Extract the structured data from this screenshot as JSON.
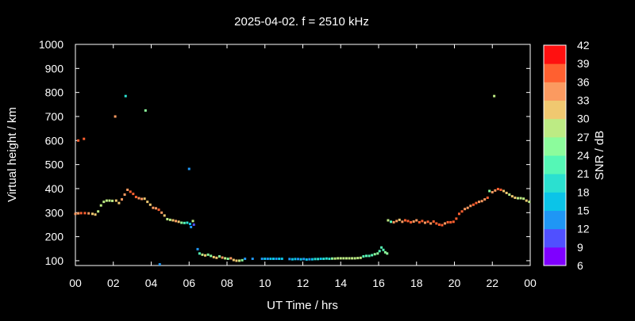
{
  "chart_data": {
    "type": "scatter",
    "title": "2025-04-02. f = 2510 kHz",
    "xlabel": "UT Time / hrs",
    "ylabel": "Virtual height / km",
    "colorbar_label": "SNR / dB",
    "xlim": [
      0,
      24
    ],
    "ylim": [
      80,
      1000
    ],
    "x_ticks": [
      "00",
      "02",
      "04",
      "06",
      "08",
      "10",
      "12",
      "14",
      "16",
      "18",
      "20",
      "22",
      "00"
    ],
    "y_ticks": [
      "100",
      "200",
      "300",
      "400",
      "500",
      "600",
      "700",
      "800",
      "900",
      "1000"
    ],
    "colorbar_ticks": [
      "6",
      "9",
      "12",
      "15",
      "18",
      "21",
      "24",
      "27",
      "30",
      "33",
      "36",
      "39",
      "42"
    ],
    "colorbar_range": [
      6,
      42
    ],
    "background": "#000000",
    "colorbar_colors": [
      "#7f00ff",
      "#5050ff",
      "#1f96f5",
      "#0bc4e8",
      "#2be0d0",
      "#55f7b6",
      "#8cfc9c",
      "#bdeb84",
      "#f0c870",
      "#fb9a60",
      "#ff6030",
      "#ff1010"
    ],
    "points": [
      {
        "x": 0.0,
        "y": 295,
        "snr": 33
      },
      {
        "x": 0.15,
        "y": 297,
        "snr": 35
      },
      {
        "x": 0.3,
        "y": 298,
        "snr": 36
      },
      {
        "x": 0.5,
        "y": 298,
        "snr": 37
      },
      {
        "x": 0.7,
        "y": 297,
        "snr": 33
      },
      {
        "x": 0.9,
        "y": 295,
        "snr": 31
      },
      {
        "x": 1.05,
        "y": 292,
        "snr": 30
      },
      {
        "x": 1.2,
        "y": 305,
        "snr": 29
      },
      {
        "x": 1.35,
        "y": 330,
        "snr": 29
      },
      {
        "x": 1.5,
        "y": 345,
        "snr": 28
      },
      {
        "x": 1.65,
        "y": 350,
        "snr": 28
      },
      {
        "x": 1.8,
        "y": 350,
        "snr": 29
      },
      {
        "x": 1.95,
        "y": 349,
        "snr": 29
      },
      {
        "x": 2.15,
        "y": 350,
        "snr": 30
      },
      {
        "x": 2.3,
        "y": 340,
        "snr": 31
      },
      {
        "x": 2.45,
        "y": 355,
        "snr": 33
      },
      {
        "x": 2.6,
        "y": 375,
        "snr": 34
      },
      {
        "x": 2.75,
        "y": 395,
        "snr": 35
      },
      {
        "x": 2.9,
        "y": 387,
        "snr": 36
      },
      {
        "x": 3.05,
        "y": 378,
        "snr": 37
      },
      {
        "x": 3.2,
        "y": 365,
        "snr": 38
      },
      {
        "x": 3.35,
        "y": 360,
        "snr": 34
      },
      {
        "x": 3.5,
        "y": 357,
        "snr": 33
      },
      {
        "x": 3.65,
        "y": 358,
        "snr": 31
      },
      {
        "x": 3.8,
        "y": 345,
        "snr": 30
      },
      {
        "x": 3.95,
        "y": 333,
        "snr": 32
      },
      {
        "x": 4.1,
        "y": 320,
        "snr": 34
      },
      {
        "x": 4.25,
        "y": 318,
        "snr": 35
      },
      {
        "x": 4.4,
        "y": 312,
        "snr": 36
      },
      {
        "x": 4.55,
        "y": 300,
        "snr": 33
      },
      {
        "x": 4.7,
        "y": 288,
        "snr": 30
      },
      {
        "x": 4.85,
        "y": 273,
        "snr": 29
      },
      {
        "x": 5.0,
        "y": 270,
        "snr": 28
      },
      {
        "x": 5.15,
        "y": 268,
        "snr": 30
      },
      {
        "x": 5.3,
        "y": 265,
        "snr": 33
      },
      {
        "x": 5.45,
        "y": 262,
        "snr": 31
      },
      {
        "x": 5.6,
        "y": 258,
        "snr": 25
      },
      {
        "x": 5.75,
        "y": 257,
        "snr": 22
      },
      {
        "x": 5.9,
        "y": 258,
        "snr": 19
      },
      {
        "x": 6.05,
        "y": 253,
        "snr": 15
      },
      {
        "x": 6.1,
        "y": 240,
        "snr": 14
      },
      {
        "x": 6.2,
        "y": 265,
        "snr": 28
      },
      {
        "x": 6.25,
        "y": 250,
        "snr": 11
      },
      {
        "x": 6.45,
        "y": 148,
        "snr": 12
      },
      {
        "x": 6.55,
        "y": 130,
        "snr": 22
      },
      {
        "x": 6.7,
        "y": 125,
        "snr": 29
      },
      {
        "x": 6.85,
        "y": 122,
        "snr": 30
      },
      {
        "x": 7.0,
        "y": 125,
        "snr": 24
      },
      {
        "x": 7.15,
        "y": 120,
        "snr": 26
      },
      {
        "x": 7.3,
        "y": 115,
        "snr": 31
      },
      {
        "x": 7.45,
        "y": 112,
        "snr": 30
      },
      {
        "x": 7.6,
        "y": 118,
        "snr": 24
      },
      {
        "x": 7.75,
        "y": 113,
        "snr": 33
      },
      {
        "x": 7.9,
        "y": 110,
        "snr": 29
      },
      {
        "x": 8.05,
        "y": 108,
        "snr": 26
      },
      {
        "x": 8.2,
        "y": 110,
        "snr": 33
      },
      {
        "x": 8.35,
        "y": 103,
        "snr": 31
      },
      {
        "x": 8.5,
        "y": 100,
        "snr": 30
      },
      {
        "x": 8.65,
        "y": 100,
        "snr": 28
      },
      {
        "x": 8.8,
        "y": 102,
        "snr": 26
      },
      {
        "x": 8.95,
        "y": 108,
        "snr": 14
      },
      {
        "x": 9.35,
        "y": 108,
        "snr": 12
      },
      {
        "x": 9.85,
        "y": 108,
        "snr": 13
      },
      {
        "x": 10.0,
        "y": 108,
        "snr": 15
      },
      {
        "x": 10.15,
        "y": 108,
        "snr": 14
      },
      {
        "x": 10.3,
        "y": 108,
        "snr": 16
      },
      {
        "x": 10.45,
        "y": 108,
        "snr": 15
      },
      {
        "x": 10.6,
        "y": 108,
        "snr": 14
      },
      {
        "x": 10.75,
        "y": 108,
        "snr": 17
      },
      {
        "x": 10.9,
        "y": 108,
        "snr": 15
      },
      {
        "x": 11.3,
        "y": 107,
        "snr": 14
      },
      {
        "x": 11.45,
        "y": 106,
        "snr": 16
      },
      {
        "x": 11.6,
        "y": 107,
        "snr": 15
      },
      {
        "x": 11.75,
        "y": 107,
        "snr": 13
      },
      {
        "x": 11.9,
        "y": 106,
        "snr": 15
      },
      {
        "x": 12.05,
        "y": 107,
        "snr": 14
      },
      {
        "x": 12.2,
        "y": 105,
        "snr": 16
      },
      {
        "x": 12.35,
        "y": 106,
        "snr": 13
      },
      {
        "x": 12.5,
        "y": 106,
        "snr": 15
      },
      {
        "x": 12.65,
        "y": 107,
        "snr": 18
      },
      {
        "x": 12.8,
        "y": 107,
        "snr": 20
      },
      {
        "x": 12.95,
        "y": 108,
        "snr": 16
      },
      {
        "x": 13.1,
        "y": 108,
        "snr": 19
      },
      {
        "x": 13.25,
        "y": 109,
        "snr": 18
      },
      {
        "x": 13.4,
        "y": 108,
        "snr": 20
      },
      {
        "x": 13.55,
        "y": 109,
        "snr": 24
      },
      {
        "x": 13.7,
        "y": 109,
        "snr": 27
      },
      {
        "x": 13.85,
        "y": 110,
        "snr": 28
      },
      {
        "x": 14.0,
        "y": 110,
        "snr": 29
      },
      {
        "x": 14.15,
        "y": 110,
        "snr": 28
      },
      {
        "x": 14.3,
        "y": 110,
        "snr": 27
      },
      {
        "x": 14.45,
        "y": 110,
        "snr": 28
      },
      {
        "x": 14.6,
        "y": 110,
        "snr": 29
      },
      {
        "x": 14.75,
        "y": 110,
        "snr": 28
      },
      {
        "x": 14.9,
        "y": 111,
        "snr": 27
      },
      {
        "x": 15.05,
        "y": 112,
        "snr": 28
      },
      {
        "x": 15.2,
        "y": 118,
        "snr": 22
      },
      {
        "x": 15.35,
        "y": 120,
        "snr": 21
      },
      {
        "x": 15.5,
        "y": 120,
        "snr": 22
      },
      {
        "x": 15.65,
        "y": 123,
        "snr": 23
      },
      {
        "x": 15.8,
        "y": 127,
        "snr": 24
      },
      {
        "x": 15.95,
        "y": 130,
        "snr": 26
      },
      {
        "x": 16.05,
        "y": 140,
        "snr": 23
      },
      {
        "x": 16.15,
        "y": 155,
        "snr": 22
      },
      {
        "x": 16.25,
        "y": 145,
        "snr": 21
      },
      {
        "x": 16.35,
        "y": 135,
        "snr": 24
      },
      {
        "x": 16.45,
        "y": 130,
        "snr": 26
      },
      {
        "x": 16.5,
        "y": 268,
        "snr": 28
      },
      {
        "x": 16.65,
        "y": 262,
        "snr": 23
      },
      {
        "x": 16.8,
        "y": 260,
        "snr": 33
      },
      {
        "x": 16.95,
        "y": 265,
        "snr": 35
      },
      {
        "x": 17.1,
        "y": 270,
        "snr": 31
      },
      {
        "x": 17.25,
        "y": 262,
        "snr": 33
      },
      {
        "x": 17.4,
        "y": 268,
        "snr": 36
      },
      {
        "x": 17.55,
        "y": 265,
        "snr": 37
      },
      {
        "x": 17.7,
        "y": 260,
        "snr": 38
      },
      {
        "x": 17.85,
        "y": 263,
        "snr": 35
      },
      {
        "x": 18.0,
        "y": 268,
        "snr": 34
      },
      {
        "x": 18.15,
        "y": 260,
        "snr": 37
      },
      {
        "x": 18.3,
        "y": 265,
        "snr": 38
      },
      {
        "x": 18.45,
        "y": 258,
        "snr": 33
      },
      {
        "x": 18.6,
        "y": 262,
        "snr": 37
      },
      {
        "x": 18.75,
        "y": 255,
        "snr": 35
      },
      {
        "x": 18.9,
        "y": 263,
        "snr": 36
      },
      {
        "x": 19.05,
        "y": 255,
        "snr": 38
      },
      {
        "x": 19.2,
        "y": 250,
        "snr": 37
      },
      {
        "x": 19.35,
        "y": 248,
        "snr": 36
      },
      {
        "x": 19.5,
        "y": 255,
        "snr": 35
      },
      {
        "x": 19.65,
        "y": 260,
        "snr": 37
      },
      {
        "x": 19.8,
        "y": 260,
        "snr": 38
      },
      {
        "x": 19.95,
        "y": 262,
        "snr": 36
      },
      {
        "x": 20.1,
        "y": 275,
        "snr": 37
      },
      {
        "x": 20.25,
        "y": 295,
        "snr": 38
      },
      {
        "x": 20.4,
        "y": 305,
        "snr": 37
      },
      {
        "x": 20.55,
        "y": 315,
        "snr": 35
      },
      {
        "x": 20.7,
        "y": 320,
        "snr": 34
      },
      {
        "x": 20.85,
        "y": 328,
        "snr": 33
      },
      {
        "x": 21.0,
        "y": 333,
        "snr": 36
      },
      {
        "x": 21.15,
        "y": 340,
        "snr": 37
      },
      {
        "x": 21.3,
        "y": 345,
        "snr": 35
      },
      {
        "x": 21.45,
        "y": 348,
        "snr": 33
      },
      {
        "x": 21.6,
        "y": 355,
        "snr": 34
      },
      {
        "x": 21.75,
        "y": 362,
        "snr": 36
      },
      {
        "x": 21.85,
        "y": 390,
        "snr": 26
      },
      {
        "x": 22.0,
        "y": 385,
        "snr": 33
      },
      {
        "x": 22.15,
        "y": 392,
        "snr": 35
      },
      {
        "x": 22.3,
        "y": 398,
        "snr": 37
      },
      {
        "x": 22.45,
        "y": 395,
        "snr": 36
      },
      {
        "x": 22.6,
        "y": 390,
        "snr": 32
      },
      {
        "x": 22.75,
        "y": 382,
        "snr": 30
      },
      {
        "x": 22.9,
        "y": 375,
        "snr": 29
      },
      {
        "x": 23.05,
        "y": 368,
        "snr": 30
      },
      {
        "x": 23.2,
        "y": 362,
        "snr": 30
      },
      {
        "x": 23.35,
        "y": 360,
        "snr": 29
      },
      {
        "x": 23.5,
        "y": 360,
        "snr": 28
      },
      {
        "x": 23.65,
        "y": 358,
        "snr": 29
      },
      {
        "x": 23.8,
        "y": 350,
        "snr": 30
      },
      {
        "x": 23.95,
        "y": 345,
        "snr": 29
      },
      {
        "x": 0.15,
        "y": 600,
        "snr": 36
      },
      {
        "x": 0.45,
        "y": 607,
        "snr": 38
      },
      {
        "x": 2.1,
        "y": 700,
        "snr": 33
      },
      {
        "x": 2.65,
        "y": 785,
        "snr": 18
      },
      {
        "x": 3.7,
        "y": 725,
        "snr": 26
      },
      {
        "x": 6.0,
        "y": 482,
        "snr": 12
      },
      {
        "x": 4.45,
        "y": 85,
        "snr": 13
      },
      {
        "x": 22.1,
        "y": 785,
        "snr": 28
      }
    ]
  }
}
